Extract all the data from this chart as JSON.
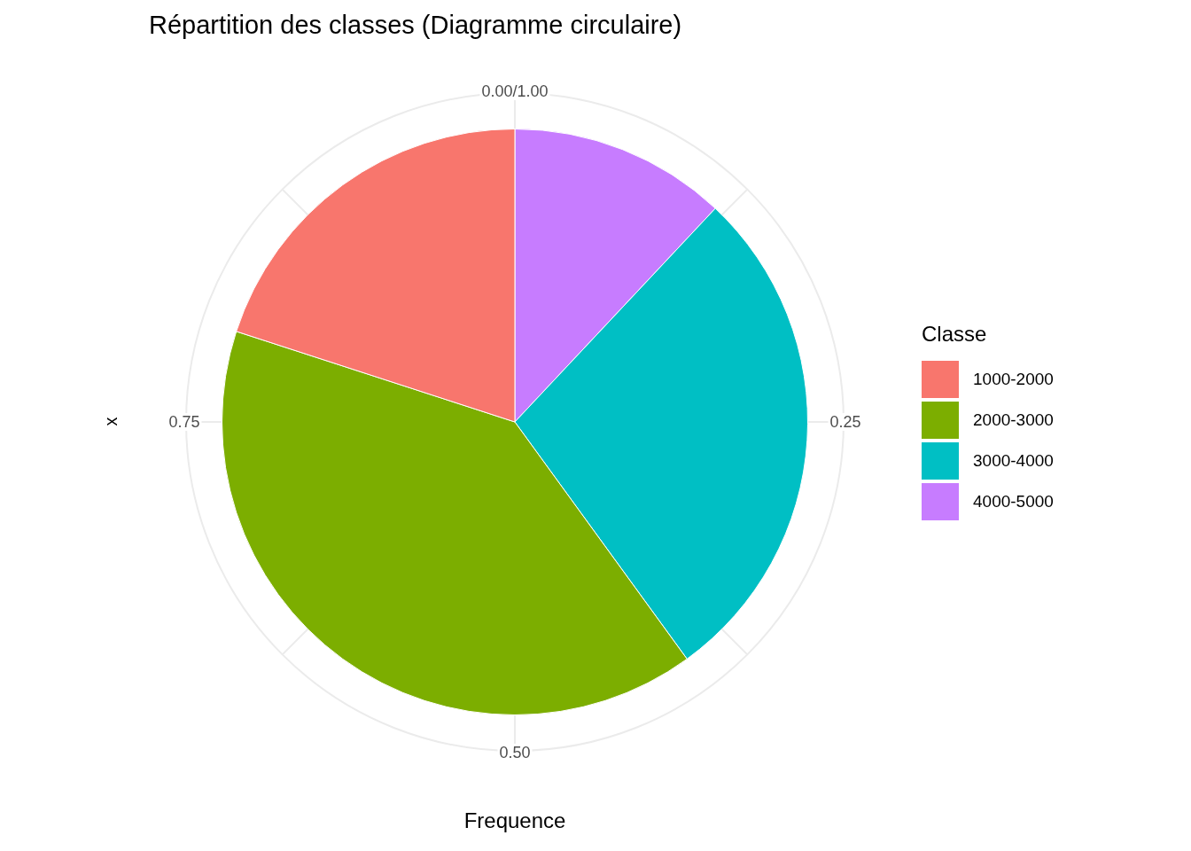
{
  "chart_data": {
    "type": "pie",
    "title": "Répartition des classes (Diagramme circulaire)",
    "xlabel": "Frequence",
    "ylabel": "x",
    "legend_title": "Classe",
    "legend": "right",
    "grid": true,
    "categories": [
      "1000-2000",
      "2000-3000",
      "3000-4000",
      "4000-5000"
    ],
    "values": [
      20,
      40,
      28,
      12
    ],
    "colors": [
      "#f8766d",
      "#7cae00",
      "#00bfc4",
      "#c77cff"
    ],
    "annotations": [
      "0.00/1.00",
      "0.25",
      "0.50",
      "0.75"
    ]
  }
}
